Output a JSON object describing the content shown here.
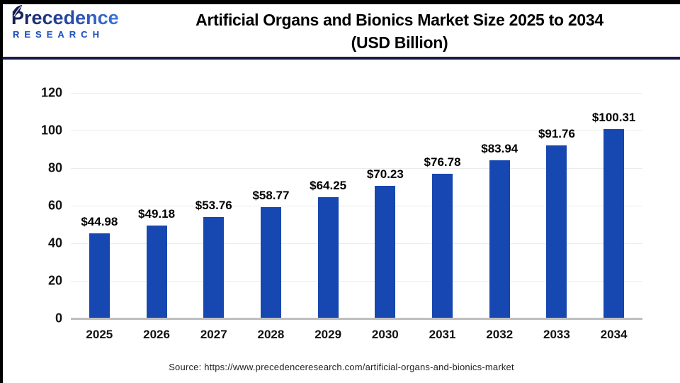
{
  "header": {
    "logo_line1": "Precedence",
    "logo_line2": "RESEARCH",
    "title_line1": "Artificial Organs and Bionics Market Size 2025 to 2034",
    "title_line2": "(USD Billion)"
  },
  "chart_data": {
    "type": "bar",
    "title": "Artificial Organs and Bionics Market Size 2025 to 2034 (USD Billion)",
    "categories": [
      "2025",
      "2026",
      "2027",
      "2028",
      "2029",
      "2030",
      "2031",
      "2032",
      "2033",
      "2034"
    ],
    "values": [
      44.98,
      49.18,
      53.76,
      58.77,
      64.25,
      70.23,
      76.78,
      83.94,
      91.76,
      100.31
    ],
    "labels": [
      "$44.98",
      "$49.18",
      "$53.76",
      "$58.77",
      "$64.25",
      "$70.23",
      "$76.78",
      "$83.94",
      "$91.76",
      "$100.31"
    ],
    "xlabel": "",
    "ylabel": "",
    "ylim": [
      0,
      120
    ],
    "yticks": [
      0,
      20,
      40,
      60,
      80,
      100,
      120
    ],
    "grid": true,
    "legend": "none",
    "bar_color": "#1747b0"
  },
  "footer": {
    "source": "Source: https://www.precedenceresearch.com/artificial-organs-and-bionics-market"
  },
  "colors": {
    "bar": "#1747b0",
    "header_rule": "#191b4d",
    "gridline": "#ececec",
    "axis_line": "#bfbfbf",
    "logo_dark": "#141c52",
    "logo_light": "#3d7ae4",
    "text": "#000000"
  }
}
